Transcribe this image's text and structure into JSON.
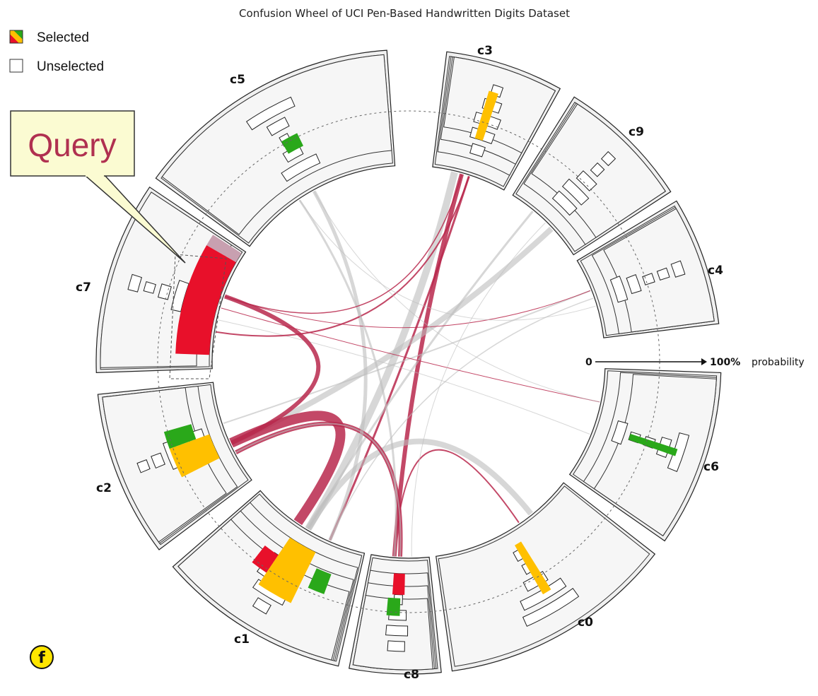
{
  "title": "Confusion Wheel of UCI Pen-Based Handwritten Digits Dataset",
  "legend": {
    "selected_label": "Selected",
    "unselected_label": "Unselected",
    "selected_colors": [
      "#e8102a",
      "#ffc000",
      "#2aa81a"
    ]
  },
  "scale": {
    "zero_label": "0",
    "max_label": "100%",
    "unit_label": "probability"
  },
  "query_callout": {
    "text": "Query"
  },
  "badge": {
    "text": "f",
    "color": "#ffe600"
  },
  "colors": {
    "sector_fill": "#f0f0f0",
    "unselected_chord": "#bdbdbd",
    "selected_chord": "#b8284c",
    "red": "#e8102a",
    "orange": "#ffc000",
    "green": "#2aa81a",
    "query_highlight": "#c8a0b0"
  },
  "classes": [
    {
      "id": "c3",
      "label": "c3"
    },
    {
      "id": "c9",
      "label": "c9"
    },
    {
      "id": "c4",
      "label": "c4"
    },
    {
      "id": "c6",
      "label": "c6"
    },
    {
      "id": "c0",
      "label": "c0"
    },
    {
      "id": "c8",
      "label": "c8"
    },
    {
      "id": "c1",
      "label": "c1"
    },
    {
      "id": "c2",
      "label": "c2"
    },
    {
      "id": "c7",
      "label": "c7"
    },
    {
      "id": "c5",
      "label": "c5"
    }
  ]
}
